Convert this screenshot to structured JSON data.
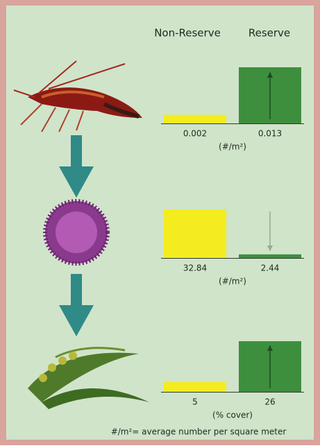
{
  "column_headers": [
    "Non-Reserve",
    "Reserve"
  ],
  "chart_data": [
    {
      "type": "bar",
      "values": [
        0.002,
        0.013
      ],
      "colors": [
        "#f4ec1e",
        "#3d8f3e"
      ],
      "unit_label": "(#/m²)"
    },
    {
      "type": "bar",
      "values": [
        32.84,
        2.44
      ],
      "colors": [
        "#f4ec1e",
        "#3d8f3e"
      ],
      "unit_label": "(#/m²)"
    },
    {
      "type": "bar",
      "values": [
        5,
        26
      ],
      "colors": [
        "#f4ec1e",
        "#3d8f3e"
      ],
      "unit_label": "(% cover)"
    }
  ],
  "footnote": "#/m²= average number per square meter"
}
